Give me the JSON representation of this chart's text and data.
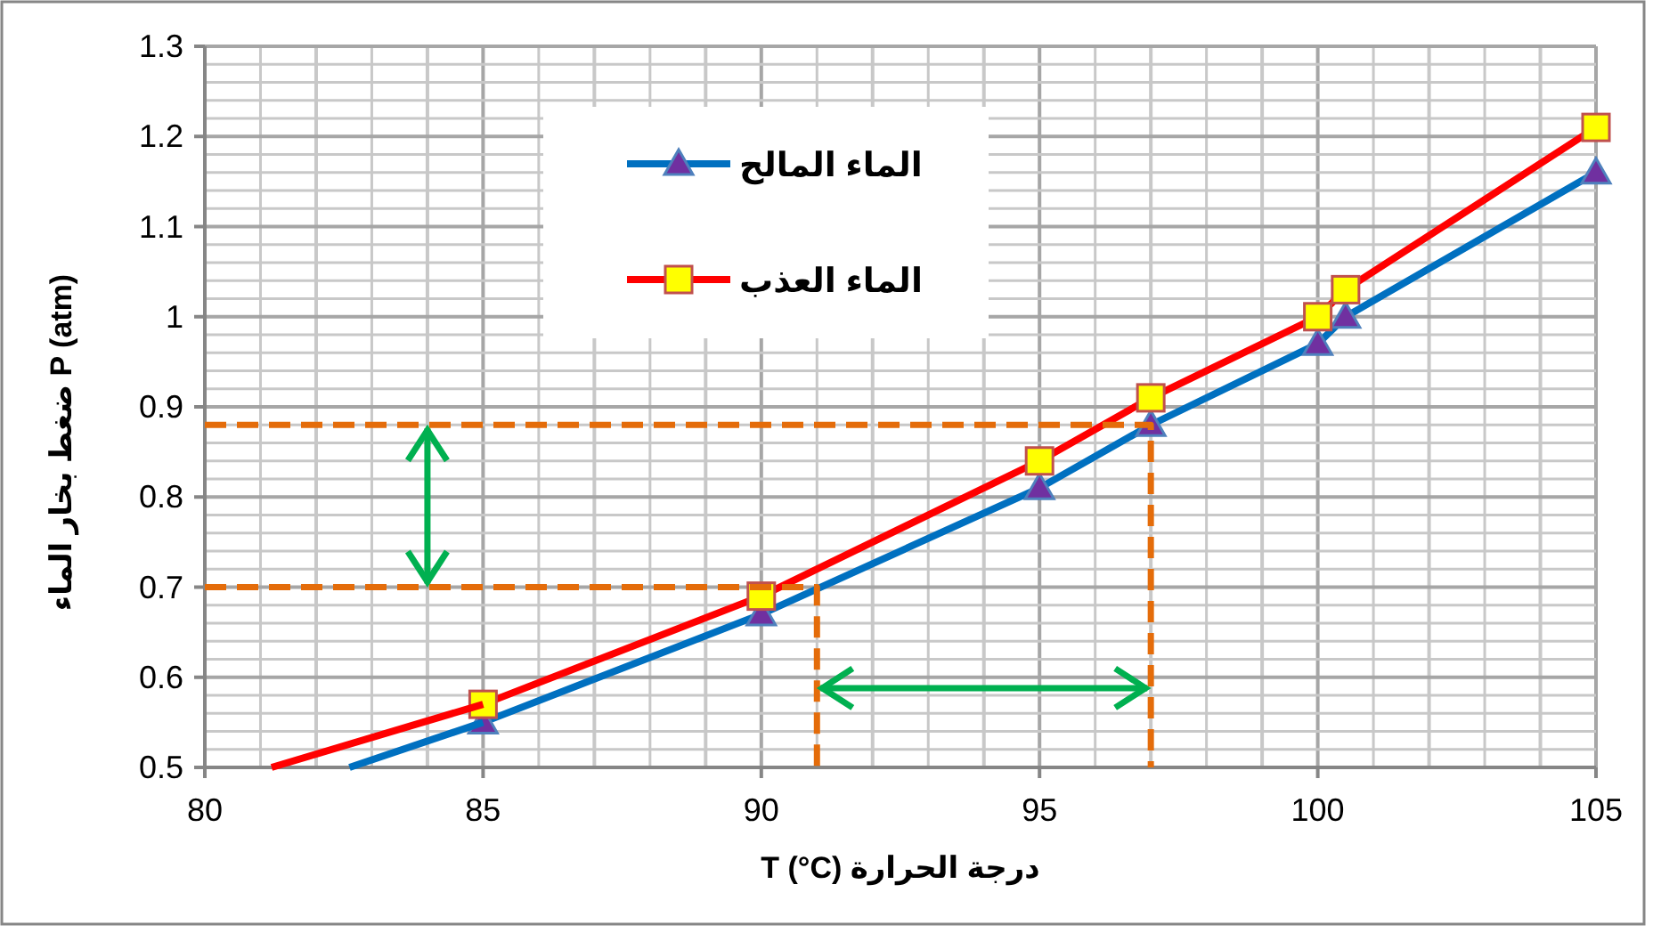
{
  "chart_data": {
    "type": "line",
    "xlabel": "درجة الحرارة T (°C)",
    "ylabel": "P (atm) ضغط بخار الماء",
    "xlim": [
      80,
      105
    ],
    "xticks": [
      80,
      85,
      90,
      95,
      100,
      105
    ],
    "ylim": [
      0.5,
      1.3
    ],
    "yticks": [
      0.5,
      0.6,
      0.7,
      0.8,
      0.9,
      1,
      1.1,
      1.2,
      1.3
    ],
    "grid": true,
    "legend": "top",
    "series": [
      {
        "name": "الماء المالح",
        "color": "#0070c0",
        "marker": "triangle",
        "x": [
          85,
          90,
          95,
          97,
          100,
          100.5,
          105
        ],
        "values": [
          0.55,
          0.67,
          0.81,
          0.88,
          0.97,
          1.0,
          1.16
        ]
      },
      {
        "name": "الماء العذب",
        "color": "#ff0000",
        "marker": "square",
        "x": [
          85,
          90,
          95,
          97,
          100,
          100.5,
          105
        ],
        "values": [
          0.57,
          0.69,
          0.84,
          0.91,
          1.0,
          1.03,
          1.21
        ]
      },
      {
        "color": "#0070c0",
        "marker": "none",
        "x": [
          82.6,
          85
        ],
        "values": [
          0.5,
          0.55
        ]
      },
      {
        "color": "#ff0000",
        "marker": "none",
        "x": [
          81.2,
          85
        ],
        "values": [
          0.5,
          0.57
        ]
      },
      {
        "color": "#e46c0a",
        "marker": "none",
        "line_style": "dashed",
        "x": [
          80,
          97,
          97
        ],
        "values": [
          0.88,
          0.88,
          0.5
        ]
      },
      {
        "color": "#e46c0a",
        "marker": "none",
        "line_style": "dashed",
        "x": [
          80,
          91,
          91
        ],
        "values": [
          0.7,
          0.7,
          0.5
        ]
      }
    ]
  }
}
